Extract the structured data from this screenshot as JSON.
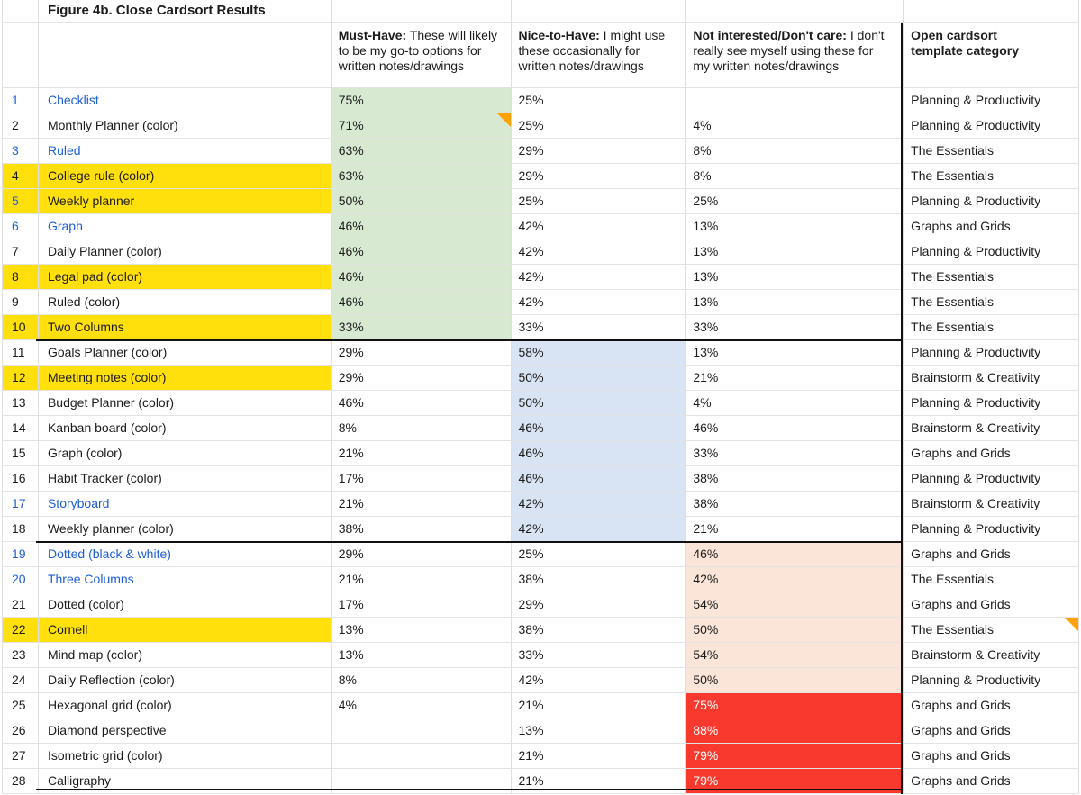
{
  "title": "Figure 4b. Close Cardsort Results",
  "columns": {
    "must": {
      "bold": "Must-Have:",
      "rest": " These will likely to be my go-to options for written notes/drawings"
    },
    "nice": {
      "bold": "Nice-to-Have:",
      "rest": " I might use these occasionally for written notes/drawings"
    },
    "not": {
      "bold": "Not interested/Don't care:",
      "rest": " I don't really see myself using these for my written notes/drawings"
    },
    "category": {
      "bold": "Open cardsort template category",
      "rest": ""
    }
  },
  "colors": {
    "highlight_yellow": "#ffe00d",
    "must_have_green": "#d8e9d2",
    "nice_to_have_blue": "#d8e4f3",
    "not_interested_peach": "#fbe5d8",
    "not_interested_red": "#f9392d",
    "link_blue": "#1d5ed6",
    "group_border_black": "#111111",
    "comment_marker_orange": "#ffa200"
  },
  "rows": [
    {
      "num": "1",
      "name": "Checklist",
      "must_have": "75%",
      "nice_to_have": "25%",
      "not_interested": "",
      "category": "Planning & Productivity",
      "band": "must-have",
      "name_link": true,
      "num_link": true
    },
    {
      "num": "2",
      "name": "Monthly Planner (color)",
      "must_have": "71%",
      "nice_to_have": "25%",
      "not_interested": "4%",
      "category": "Planning & Productivity",
      "band": "must-have",
      "must_comment": true
    },
    {
      "num": "3",
      "name": "Ruled",
      "must_have": "63%",
      "nice_to_have": "29%",
      "not_interested": "8%",
      "category": "The Essentials",
      "band": "must-have",
      "name_link": true,
      "num_link": true
    },
    {
      "num": "4",
      "name": "College rule (color)",
      "must_have": "63%",
      "nice_to_have": "29%",
      "not_interested": "8%",
      "category": "The Essentials",
      "band": "must-have",
      "highlighted": true
    },
    {
      "num": "5",
      "name": "Weekly planner",
      "must_have": "50%",
      "nice_to_have": "25%",
      "not_interested": "25%",
      "category": "Planning & Productivity",
      "band": "must-have",
      "highlighted": true,
      "num_link": true
    },
    {
      "num": "6",
      "name": "Graph",
      "must_have": "46%",
      "nice_to_have": "42%",
      "not_interested": "13%",
      "category": "Graphs and Grids",
      "band": "must-have",
      "name_link": true,
      "num_link": true
    },
    {
      "num": "7",
      "name": "Daily Planner (color)",
      "must_have": "46%",
      "nice_to_have": "42%",
      "not_interested": "13%",
      "category": "Planning & Productivity",
      "band": "must-have"
    },
    {
      "num": "8",
      "name": "Legal pad (color)",
      "must_have": "46%",
      "nice_to_have": "42%",
      "not_interested": "13%",
      "category": "The Essentials",
      "band": "must-have",
      "highlighted": true
    },
    {
      "num": "9",
      "name": "Ruled (color)",
      "must_have": "46%",
      "nice_to_have": "42%",
      "not_interested": "13%",
      "category": "The Essentials",
      "band": "must-have"
    },
    {
      "num": "10",
      "name": "Two Columns",
      "must_have": "33%",
      "nice_to_have": "33%",
      "not_interested": "33%",
      "category": "The Essentials",
      "band": "must-have",
      "highlighted": true
    },
    {
      "num": "11",
      "name": "Goals Planner (color)",
      "must_have": "29%",
      "nice_to_have": "58%",
      "not_interested": "13%",
      "category": "Planning & Productivity",
      "band": "nice-to-have"
    },
    {
      "num": "12",
      "name": "Meeting notes (color)",
      "must_have": "29%",
      "nice_to_have": "50%",
      "not_interested": "21%",
      "category": "Brainstorm & Creativity",
      "band": "nice-to-have",
      "highlighted": true
    },
    {
      "num": "13",
      "name": "Budget Planner (color)",
      "must_have": "46%",
      "nice_to_have": "50%",
      "not_interested": "4%",
      "category": "Planning & Productivity",
      "band": "nice-to-have"
    },
    {
      "num": "14",
      "name": "Kanban board (color)",
      "must_have": "8%",
      "nice_to_have": "46%",
      "not_interested": "46%",
      "category": "Brainstorm & Creativity",
      "band": "nice-to-have"
    },
    {
      "num": "15",
      "name": "Graph (color)",
      "must_have": "21%",
      "nice_to_have": "46%",
      "not_interested": "33%",
      "category": "Graphs and Grids",
      "band": "nice-to-have"
    },
    {
      "num": "16",
      "name": "Habit Tracker (color)",
      "must_have": "17%",
      "nice_to_have": "46%",
      "not_interested": "38%",
      "category": "Planning & Productivity",
      "band": "nice-to-have"
    },
    {
      "num": "17",
      "name": "Storyboard",
      "must_have": "21%",
      "nice_to_have": "42%",
      "not_interested": "38%",
      "category": "Brainstorm & Creativity",
      "band": "nice-to-have",
      "name_link": true,
      "num_link": true
    },
    {
      "num": "18",
      "name": "Weekly planner (color)",
      "must_have": "38%",
      "nice_to_have": "42%",
      "not_interested": "21%",
      "category": "Planning & Productivity",
      "band": "nice-to-have"
    },
    {
      "num": "19",
      "name": "Dotted (black & white)",
      "must_have": "29%",
      "nice_to_have": "25%",
      "not_interested": "46%",
      "category": "Graphs and Grids",
      "band": "not-interested",
      "name_link": true,
      "num_link": true
    },
    {
      "num": "20",
      "name": "Three Columns",
      "must_have": "21%",
      "nice_to_have": "38%",
      "not_interested": "42%",
      "category": "The Essentials",
      "band": "not-interested",
      "name_link": true,
      "num_link": true
    },
    {
      "num": "21",
      "name": "Dotted (color)",
      "must_have": "17%",
      "nice_to_have": "29%",
      "not_interested": "54%",
      "category": "Graphs and Grids",
      "band": "not-interested"
    },
    {
      "num": "22",
      "name": "Cornell",
      "must_have": "13%",
      "nice_to_have": "38%",
      "not_interested": "50%",
      "category": "The Essentials",
      "band": "not-interested",
      "highlighted": true,
      "category_comment": true
    },
    {
      "num": "23",
      "name": "Mind map (color)",
      "must_have": "13%",
      "nice_to_have": "33%",
      "not_interested": "54%",
      "category": "Brainstorm & Creativity",
      "band": "not-interested"
    },
    {
      "num": "24",
      "name": "Daily Reflection (color)",
      "must_have": "8%",
      "nice_to_have": "42%",
      "not_interested": "50%",
      "category": "Planning & Productivity",
      "band": "not-interested"
    },
    {
      "num": "25",
      "name": "Hexagonal grid (color)",
      "must_have": "4%",
      "nice_to_have": "21%",
      "not_interested": "75%",
      "category": "Graphs and Grids",
      "band": "not-interested-strong"
    },
    {
      "num": "26",
      "name": "Diamond perspective",
      "must_have": "",
      "nice_to_have": "13%",
      "not_interested": "88%",
      "category": "Graphs and Grids",
      "band": "not-interested-strong"
    },
    {
      "num": "27",
      "name": "Isometric grid (color)",
      "must_have": "",
      "nice_to_have": "21%",
      "not_interested": "79%",
      "category": "Graphs and Grids",
      "band": "not-interested-strong"
    },
    {
      "num": "28",
      "name": "Calligraphy",
      "must_have": "",
      "nice_to_have": "21%",
      "not_interested": "79%",
      "category": "Graphs and Grids",
      "band": "not-interested-strong"
    }
  ]
}
